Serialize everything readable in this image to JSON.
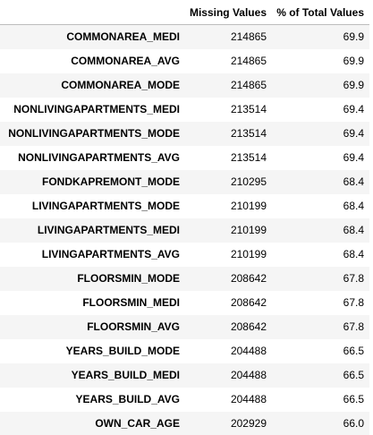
{
  "table": {
    "index_header": "",
    "columns": [
      "Missing Values",
      "% of Total Values"
    ],
    "rows": [
      {
        "name": "COMMONAREA_MEDI",
        "missing": "214865",
        "pct": "69.9"
      },
      {
        "name": "COMMONAREA_AVG",
        "missing": "214865",
        "pct": "69.9"
      },
      {
        "name": "COMMONAREA_MODE",
        "missing": "214865",
        "pct": "69.9"
      },
      {
        "name": "NONLIVINGAPARTMENTS_MEDI",
        "missing": "213514",
        "pct": "69.4"
      },
      {
        "name": "NONLIVINGAPARTMENTS_MODE",
        "missing": "213514",
        "pct": "69.4"
      },
      {
        "name": "NONLIVINGAPARTMENTS_AVG",
        "missing": "213514",
        "pct": "69.4"
      },
      {
        "name": "FONDKAPREMONT_MODE",
        "missing": "210295",
        "pct": "68.4"
      },
      {
        "name": "LIVINGAPARTMENTS_MODE",
        "missing": "210199",
        "pct": "68.4"
      },
      {
        "name": "LIVINGAPARTMENTS_MEDI",
        "missing": "210199",
        "pct": "68.4"
      },
      {
        "name": "LIVINGAPARTMENTS_AVG",
        "missing": "210199",
        "pct": "68.4"
      },
      {
        "name": "FLOORSMIN_MODE",
        "missing": "208642",
        "pct": "67.8"
      },
      {
        "name": "FLOORSMIN_MEDI",
        "missing": "208642",
        "pct": "67.8"
      },
      {
        "name": "FLOORSMIN_AVG",
        "missing": "208642",
        "pct": "67.8"
      },
      {
        "name": "YEARS_BUILD_MODE",
        "missing": "204488",
        "pct": "66.5"
      },
      {
        "name": "YEARS_BUILD_MEDI",
        "missing": "204488",
        "pct": "66.5"
      },
      {
        "name": "YEARS_BUILD_AVG",
        "missing": "204488",
        "pct": "66.5"
      },
      {
        "name": "OWN_CAR_AGE",
        "missing": "202929",
        "pct": "66.0"
      }
    ]
  },
  "colors": {
    "stripe": "#f5f5f5",
    "background": "#ffffff",
    "text": "#000000",
    "header_rule": "#bdbdbd"
  }
}
